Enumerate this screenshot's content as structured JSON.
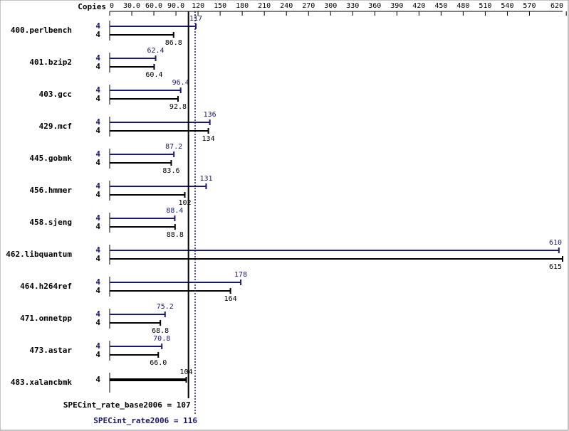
{
  "chart_data": {
    "type": "bar",
    "orientation": "horizontal",
    "copies_label": "Copies",
    "categories": [
      "400.perlbench",
      "401.bzip2",
      "403.gcc",
      "429.mcf",
      "445.gobmk",
      "456.hmmer",
      "458.sjeng",
      "462.libquantum",
      "464.h264ref",
      "471.omnetpp",
      "473.astar",
      "483.xalancbmk"
    ],
    "series": [
      {
        "color": "#191970",
        "copies": [
          4,
          4,
          4,
          4,
          4,
          4,
          4,
          4,
          4,
          4,
          4,
          null
        ],
        "values": [
          117,
          62.4,
          96.4,
          136,
          87.2,
          131,
          88.4,
          610,
          178,
          75.2,
          70.8,
          null
        ]
      },
      {
        "color": "#000000",
        "copies": [
          4,
          4,
          4,
          4,
          4,
          4,
          4,
          4,
          4,
          4,
          4,
          4
        ],
        "values": [
          86.8,
          60.4,
          92.8,
          134,
          83.6,
          102,
          88.8,
          615,
          164,
          68.8,
          66.0,
          104
        ],
        "value_labels": [
          "86.8",
          "60.4",
          "92.8",
          "134",
          "83.6",
          "102",
          "88.8",
          "615",
          "164",
          "68.8",
          "66.0",
          "104"
        ]
      }
    ],
    "xlim": [
      0,
      615
    ],
    "xticks": [
      0,
      {
        "value": 30,
        "label": "30.0"
      },
      {
        "value": 60,
        "label": "60.0"
      },
      {
        "value": 90,
        "label": "90.0"
      },
      120,
      150,
      180,
      210,
      240,
      270,
      300,
      330,
      360,
      390,
      420,
      450,
      480,
      510,
      540,
      570,
      620
    ],
    "reference_lines": [
      {
        "label": "SPECint_rate_base2006 = 107",
        "value": 107,
        "color": "#000000"
      },
      {
        "label": "SPECint_rate2006 = 116",
        "value": 116,
        "color": "#191970"
      }
    ]
  }
}
